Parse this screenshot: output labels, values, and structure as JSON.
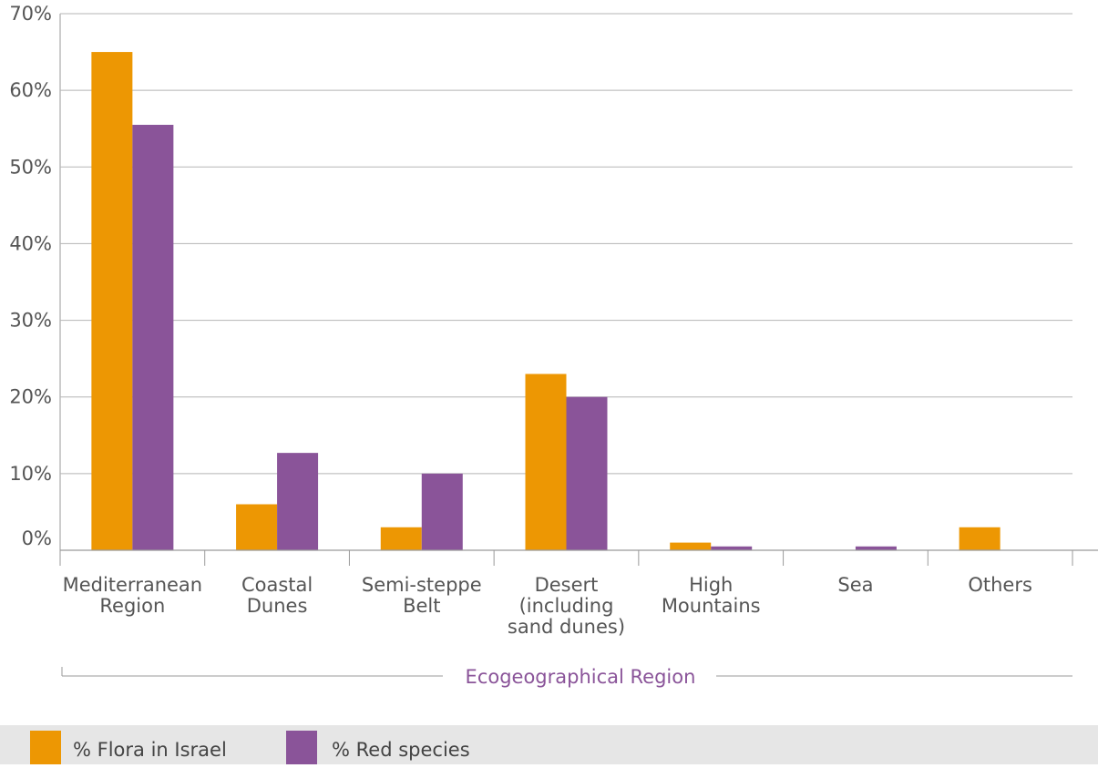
{
  "chart_data": {
    "type": "bar",
    "title": "",
    "xlabel": "Ecogeographical Region",
    "ylabel": "",
    "categories": [
      [
        "Mediterranean",
        "Region"
      ],
      [
        "Coastal",
        "Dunes"
      ],
      [
        "Semi-steppe",
        "Belt"
      ],
      [
        "Desert",
        "(including",
        "sand dunes)"
      ],
      [
        "High",
        "Mountains"
      ],
      [
        "Sea"
      ],
      [
        "Others"
      ]
    ],
    "series": [
      {
        "name": "% Flora in Israel",
        "color": "#ED9703",
        "values": [
          65,
          6,
          3,
          23,
          1,
          0,
          3
        ]
      },
      {
        "name": "% Red species",
        "color": "#8A5499",
        "values": [
          55.5,
          12.7,
          10,
          20,
          0.5,
          0.5,
          0
        ]
      }
    ],
    "ylim": [
      0,
      70
    ],
    "yticks": [
      "0%",
      "10%",
      "20%",
      "30%",
      "40%",
      "50%",
      "60%",
      "70%"
    ],
    "grid": true,
    "legend": "bottom"
  }
}
